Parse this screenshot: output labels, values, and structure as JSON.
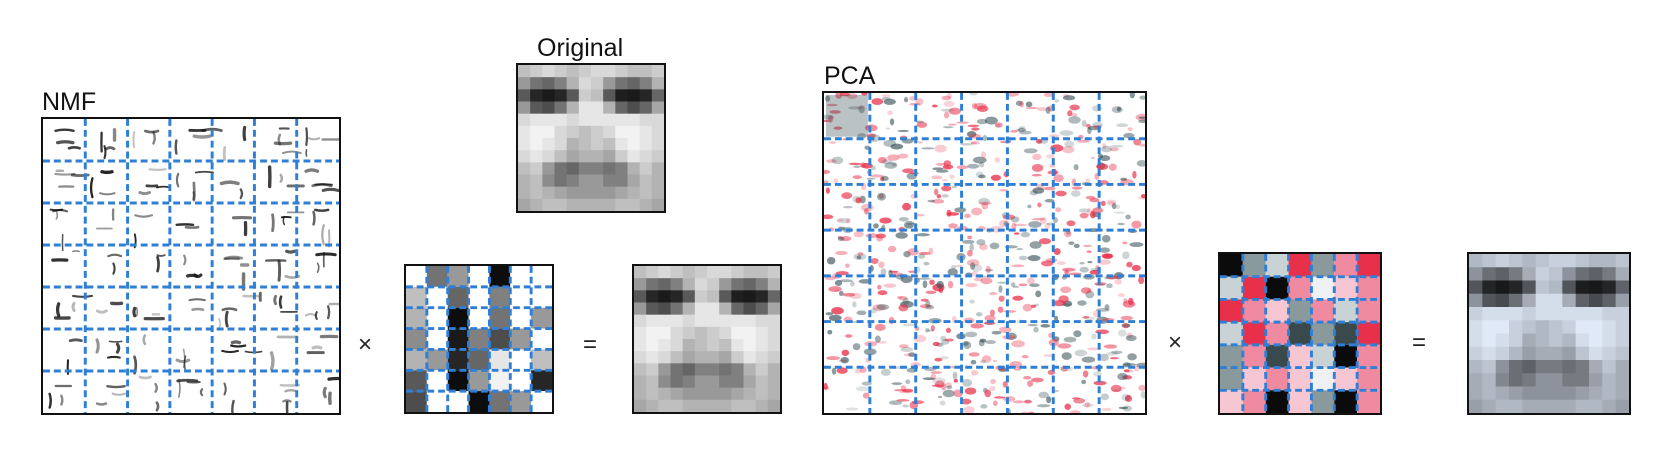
{
  "labels": {
    "nmf": "NMF",
    "original": "Original",
    "pca": "PCA"
  },
  "operators": {
    "times_nmf": "×",
    "equals_nmf": "=",
    "times_pca": "×",
    "equals_pca": "="
  },
  "colors": {
    "grid_line": "#2f7fd6",
    "frame": "#111111",
    "pca_positive": "#e8304a",
    "pca_negative": "#2f4a50"
  },
  "grids": {
    "nmf_components": {
      "rows": 7,
      "cols": 7
    },
    "nmf_weights": {
      "rows": 7,
      "cols": 7
    },
    "pca_components": {
      "rows": 7,
      "cols": 7
    },
    "pca_weights": {
      "rows": 7,
      "cols": 7
    }
  }
}
